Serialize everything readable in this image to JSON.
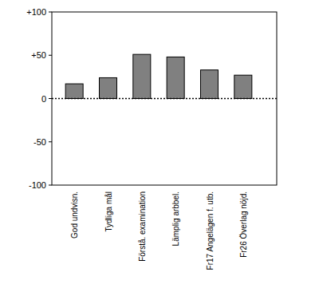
{
  "chart_data": {
    "type": "bar",
    "categories": [
      "God undvisn.",
      "Tydliga mål",
      "Förstå. examination",
      "Lämplig arbbel.",
      "Fr17 Angelägen f. utb.",
      "Fr26 Överlag nöjd."
    ],
    "values": [
      17,
      24,
      51,
      48,
      33,
      27
    ],
    "color": "#808080",
    "ylim": [
      -100,
      100
    ],
    "yticks": [
      -100,
      -50,
      0,
      {
        "value": 50,
        "label": "+50"
      },
      {
        "value": 100,
        "label": "+100"
      }
    ],
    "grid": false
  }
}
